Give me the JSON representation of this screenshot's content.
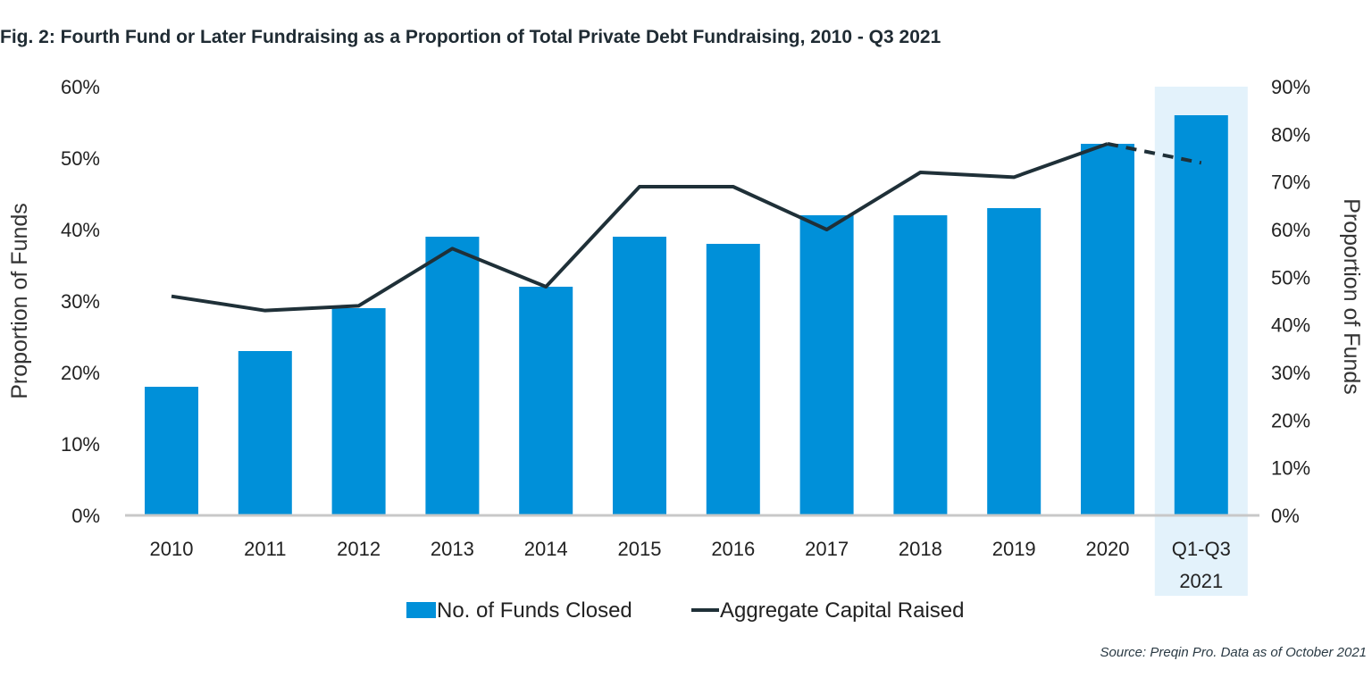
{
  "title": "Fig. 2: Fourth Fund or Later Fundraising as a Proportion of Total Private Debt Fundraising, 2010 - Q3 2021",
  "source": "Source: Preqin Pro. Data as of October 2021",
  "colors": {
    "bar": "#0090d9",
    "line": "#1f3038",
    "highlight": "#e3f2fb",
    "baseline": "#c8c8c8"
  },
  "chart_data": {
    "type": "bar+line",
    "categories": [
      [
        "2010"
      ],
      [
        "2011"
      ],
      [
        "2012"
      ],
      [
        "2013"
      ],
      [
        "2014"
      ],
      [
        "2015"
      ],
      [
        "2016"
      ],
      [
        "2017"
      ],
      [
        "2018"
      ],
      [
        "2019"
      ],
      [
        "2020"
      ],
      [
        "Q1-Q3",
        "2021"
      ]
    ],
    "highlighted_category_index": 11,
    "left_axis": {
      "label": "Proportion of Funds",
      "range": [
        0,
        60
      ],
      "ticks": [
        "0%",
        "10%",
        "20%",
        "30%",
        "40%",
        "50%",
        "60%"
      ]
    },
    "right_axis": {
      "label": "Proportion of Funds",
      "range": [
        0,
        90
      ],
      "ticks": [
        "0%",
        "10%",
        "20%",
        "30%",
        "40%",
        "50%",
        "60%",
        "70%",
        "80%",
        "90%"
      ]
    },
    "series": [
      {
        "name": "No. of Funds Closed",
        "type": "bar",
        "axis": "left",
        "values": [
          18,
          23,
          29,
          39,
          32,
          39,
          38,
          42,
          42,
          43,
          52,
          56
        ]
      },
      {
        "name": "Aggregate Capital Raised",
        "type": "line",
        "axis": "right",
        "values": [
          46,
          43,
          44,
          56,
          48,
          69,
          69,
          60,
          72,
          71,
          78,
          74
        ],
        "dashed_from_index": 10
      }
    ],
    "legend": [
      "No. of Funds Closed",
      "Aggregate Capital Raised"
    ],
    "legend_position": "bottom"
  }
}
